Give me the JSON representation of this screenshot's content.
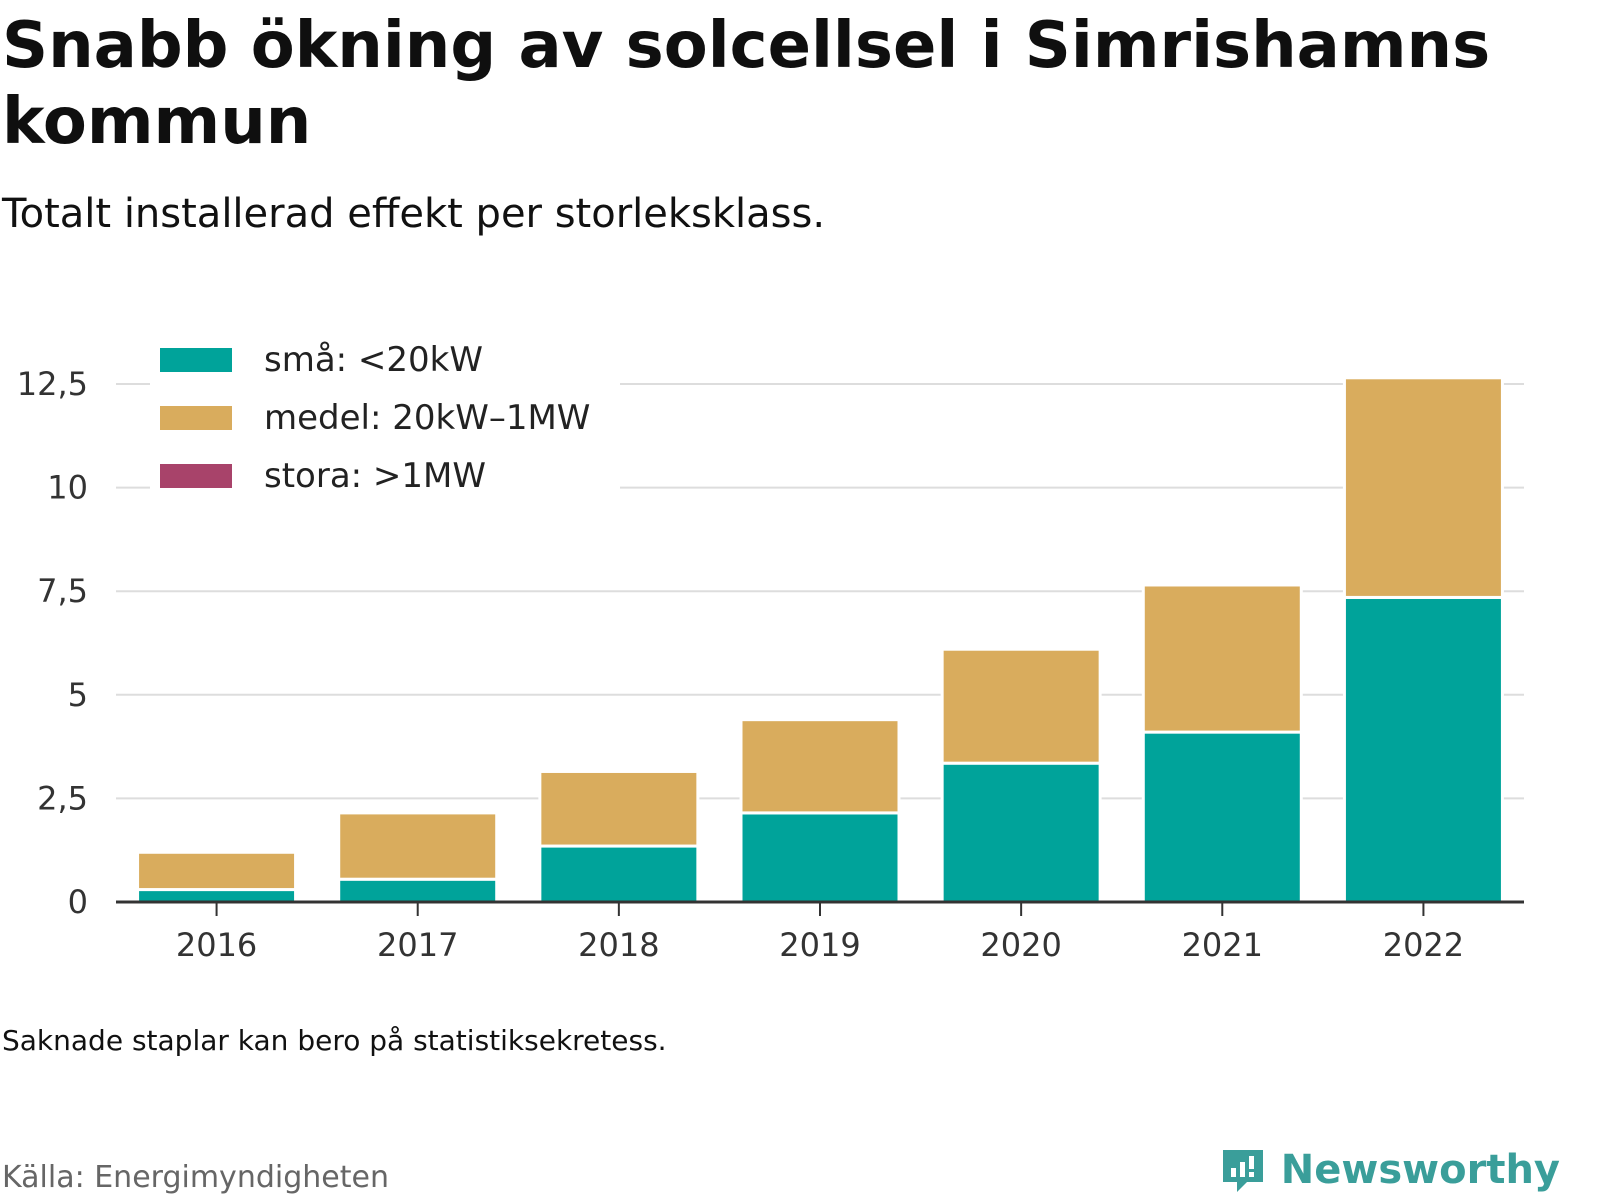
{
  "header": {
    "title": "Snabb ökning av solcellsel i Simrishamns kommun",
    "subtitle": "Totalt installerad effekt per storleksklass."
  },
  "footer": {
    "note": "Saknade staplar kan bero på statistiksekretess.",
    "source": "Källa: Energimyndigheten",
    "brand": "Newsworthy",
    "brand_icon": "bar-chart-speech-bubble-icon"
  },
  "chart_data": {
    "type": "bar",
    "stacked": true,
    "categories": [
      "2016",
      "2017",
      "2018",
      "2019",
      "2020",
      "2021",
      "2022"
    ],
    "series": [
      {
        "name": "små: <20kW",
        "color": "#00a39a",
        "values": [
          0.3,
          0.55,
          1.35,
          2.15,
          3.35,
          4.1,
          7.35
        ]
      },
      {
        "name": "medel: 20kW–1MW",
        "color": "#d9ac5d",
        "values": [
          0.9,
          1.6,
          1.8,
          2.25,
          2.75,
          3.55,
          5.3
        ]
      },
      {
        "name": "stora: >1MW",
        "color": "#a8436a",
        "values": [
          0,
          0,
          0,
          0,
          0,
          0,
          0
        ]
      }
    ],
    "y_ticks": [
      0,
      2.5,
      5,
      7.5,
      10,
      12.5
    ],
    "y_tick_labels": [
      "0",
      "2,5",
      "5",
      "7,5",
      "10",
      "12,5"
    ],
    "ylim": [
      0,
      12.5
    ],
    "grid": true,
    "legend": "top-left"
  }
}
